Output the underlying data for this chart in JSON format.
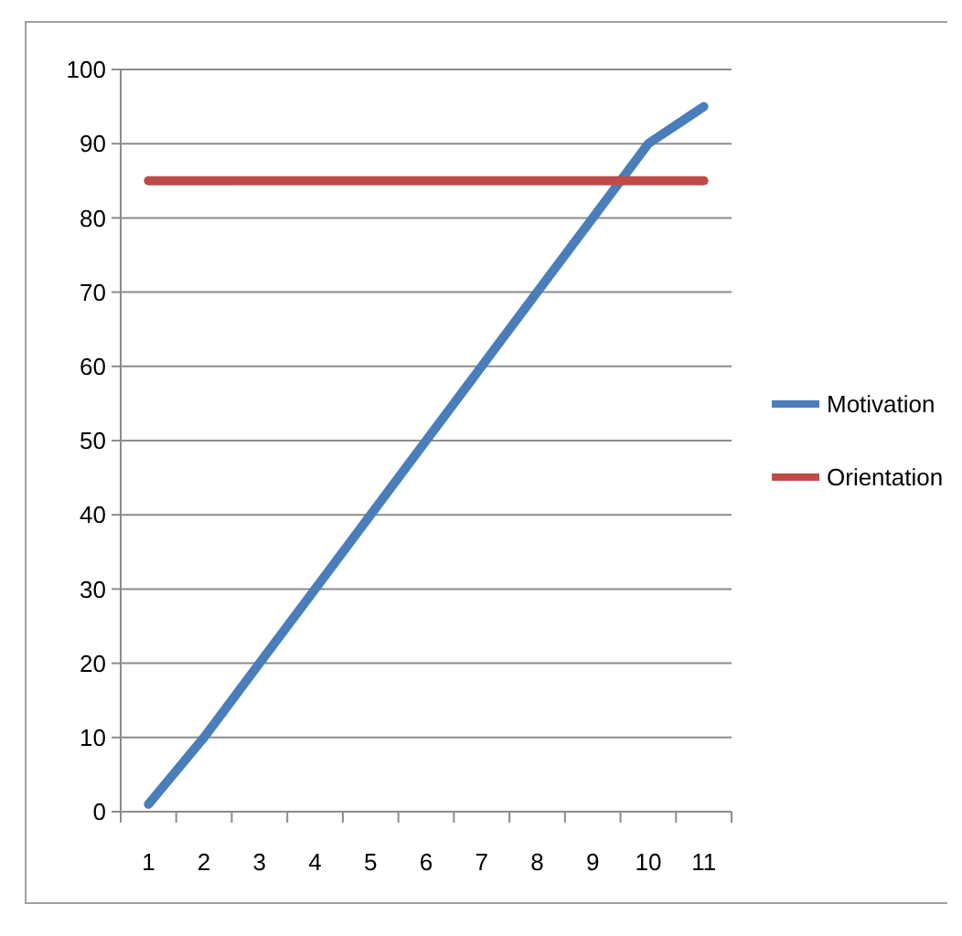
{
  "chart_data": {
    "type": "line",
    "categories": [
      "1",
      "2",
      "3",
      "4",
      "5",
      "6",
      "7",
      "8",
      "9",
      "10",
      "11"
    ],
    "series": [
      {
        "name": "Motivation",
        "color": "#4a7ebb",
        "values": [
          1,
          10,
          20,
          30,
          40,
          50,
          60,
          70,
          80,
          90,
          95
        ]
      },
      {
        "name": "Orientation",
        "color": "#be4b48",
        "values": [
          85,
          85,
          85,
          85,
          85,
          85,
          85,
          85,
          85,
          85,
          85
        ]
      }
    ],
    "ylim": [
      0,
      100
    ],
    "yticks": [
      0,
      10,
      20,
      30,
      40,
      50,
      60,
      70,
      80,
      90,
      100
    ],
    "grid": "y",
    "legend": "right",
    "marker": "none",
    "line_style": "solid"
  }
}
